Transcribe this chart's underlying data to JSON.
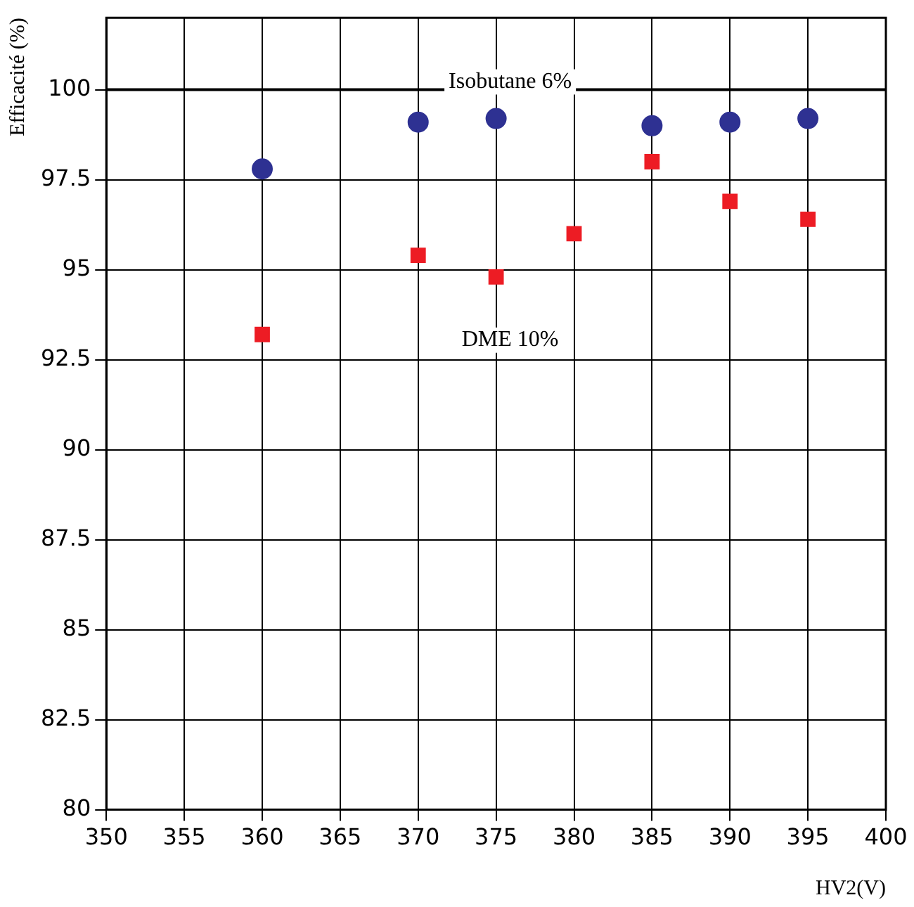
{
  "chart_data": {
    "type": "scatter",
    "xlabel": "HV2(V)",
    "ylabel": "Efficacité (%)",
    "xlim": [
      350,
      400
    ],
    "xticks": [
      350,
      355,
      360,
      365,
      370,
      375,
      380,
      385,
      390,
      395,
      400
    ],
    "ylim": [
      80,
      102
    ],
    "yticks": [
      80,
      82.5,
      85,
      87.5,
      90,
      92.5,
      95,
      97.5,
      100
    ],
    "grid": true,
    "series": [
      {
        "name": "Isobutane 6%",
        "color": "#2e3192",
        "marker": "circle",
        "x": [
          360,
          370,
          375,
          385,
          390,
          395
        ],
        "values": [
          97.8,
          99.1,
          99.2,
          99.0,
          99.1,
          99.2
        ]
      },
      {
        "name": "DME 10%",
        "color": "#ed1c24",
        "marker": "square",
        "x": [
          360,
          370,
          375,
          380,
          385,
          390,
          395
        ],
        "values": [
          93.2,
          95.4,
          94.8,
          96.0,
          98.0,
          96.9,
          96.4
        ]
      }
    ],
    "ref_lines": [
      {
        "axis": "y",
        "value": 100,
        "color": "#000000"
      }
    ]
  }
}
